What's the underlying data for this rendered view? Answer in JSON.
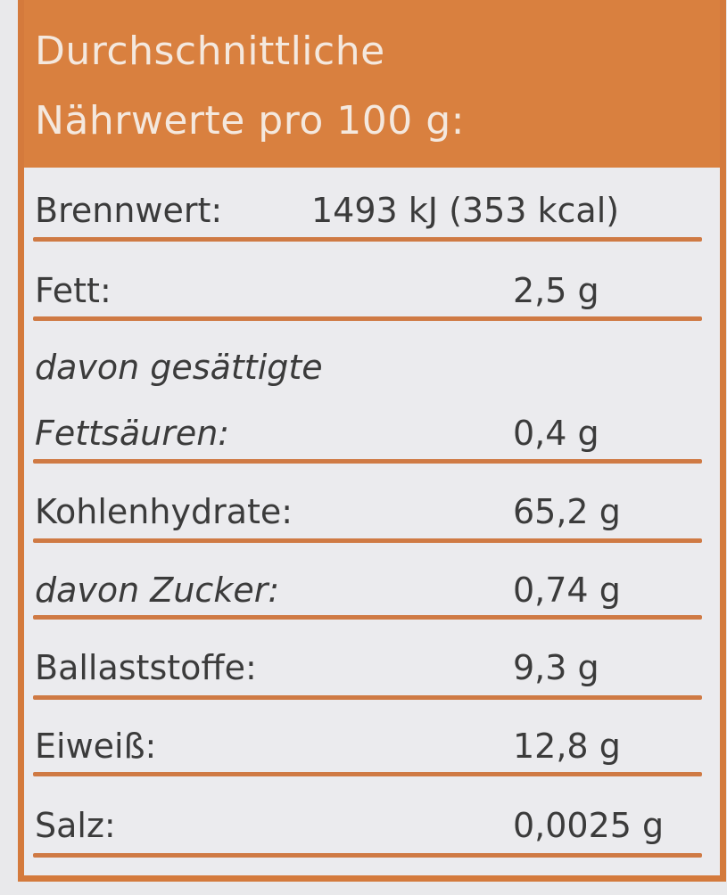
{
  "header": {
    "line1": "Durchschnittliche",
    "line2": "Nährwerte pro 100 g:"
  },
  "rows": [
    {
      "label": "Brennwert:",
      "value": "1493 kJ (353 kcal)"
    },
    {
      "label": "Fett:",
      "value": "2,5 g"
    },
    {
      "label_line1": "davon gesättigte",
      "label": "Fettsäuren:",
      "value": "0,4 g"
    },
    {
      "label": "Kohlenhydrate:",
      "value": "65,2 g"
    },
    {
      "label": "davon Zucker:",
      "value": "0,74 g"
    },
    {
      "label": "Ballaststoffe:",
      "value": "9,3 g"
    },
    {
      "label": "Eiweiß:",
      "value": "12,8 g"
    },
    {
      "label": "Salz:",
      "value": "0,0025 g"
    }
  ],
  "colors": {
    "accent": "#d9803f",
    "text": "#3b3b3b",
    "background": "#ebebee"
  }
}
